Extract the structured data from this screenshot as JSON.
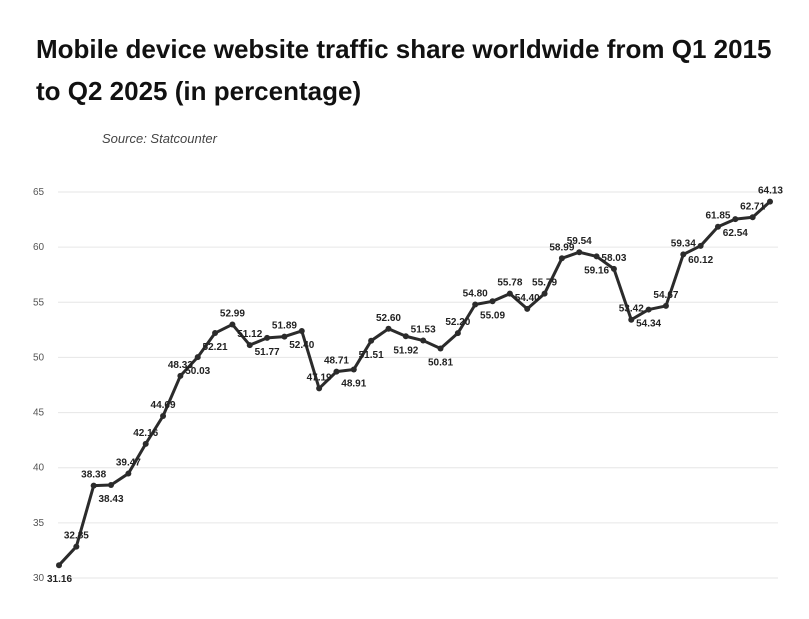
{
  "chart_data": {
    "type": "line",
    "title": "Mobile device website traffic share worldwide from Q1 2015 to Q2 2025 (in percentage)",
    "source": "Source: Statcounter",
    "xlabel": "",
    "ylabel": "",
    "ylim": [
      30,
      65
    ],
    "yticks": [
      "30",
      "35",
      "40",
      "45",
      "50",
      "55",
      "60",
      "65"
    ],
    "grid": true,
    "series": [
      {
        "values": [
          31.16,
          32.85,
          38.38,
          38.43,
          39.47,
          42.16,
          44.69,
          48.33,
          50.03,
          52.21,
          52.99,
          51.12,
          51.77,
          51.89,
          52.4,
          47.19,
          48.71,
          48.91,
          51.51,
          52.6,
          51.92,
          51.53,
          50.81,
          52.2,
          54.8,
          55.09,
          55.78,
          54.4,
          55.79,
          58.99,
          59.54,
          59.16,
          58.03,
          53.42,
          54.34,
          54.67,
          59.34,
          60.12,
          61.85,
          62.54,
          62.71,
          64.13
        ],
        "labels": [
          "31.16",
          "32.85",
          "38.38",
          "38.43",
          "39.47",
          "42.16",
          "44.69",
          "48.33",
          "50.03",
          "52.21",
          "52.99",
          "51.12",
          "51.77",
          "51.89",
          "52.40",
          "47.19",
          "48.71",
          "48.91",
          "51.51",
          "52.60",
          "51.92",
          "51.53",
          "50.81",
          "52.20",
          "54.80",
          "55.09",
          "55.78",
          "54.40",
          "55.79",
          "58.99",
          "59.54",
          "59.16",
          "58.03",
          "53.42",
          "54.34",
          "54.67",
          "59.34",
          "60.12",
          "61.85",
          "62.54",
          "62.71",
          "64.13"
        ],
        "label_positions": [
          "below",
          "above",
          "above",
          "below",
          "above",
          "above",
          "above",
          "above",
          "below",
          "below",
          "above",
          "above",
          "below",
          "above",
          "below",
          "above",
          "above",
          "below",
          "below",
          "above",
          "below",
          "above",
          "below",
          "above",
          "above",
          "below",
          "above",
          "above",
          "above",
          "above",
          "above",
          "below",
          "above",
          "above",
          "below",
          "above",
          "above",
          "below",
          "above",
          "below",
          "above",
          "above"
        ]
      }
    ],
    "line_color": "#2b2b2b",
    "grid_color": "#e6e6e6"
  }
}
